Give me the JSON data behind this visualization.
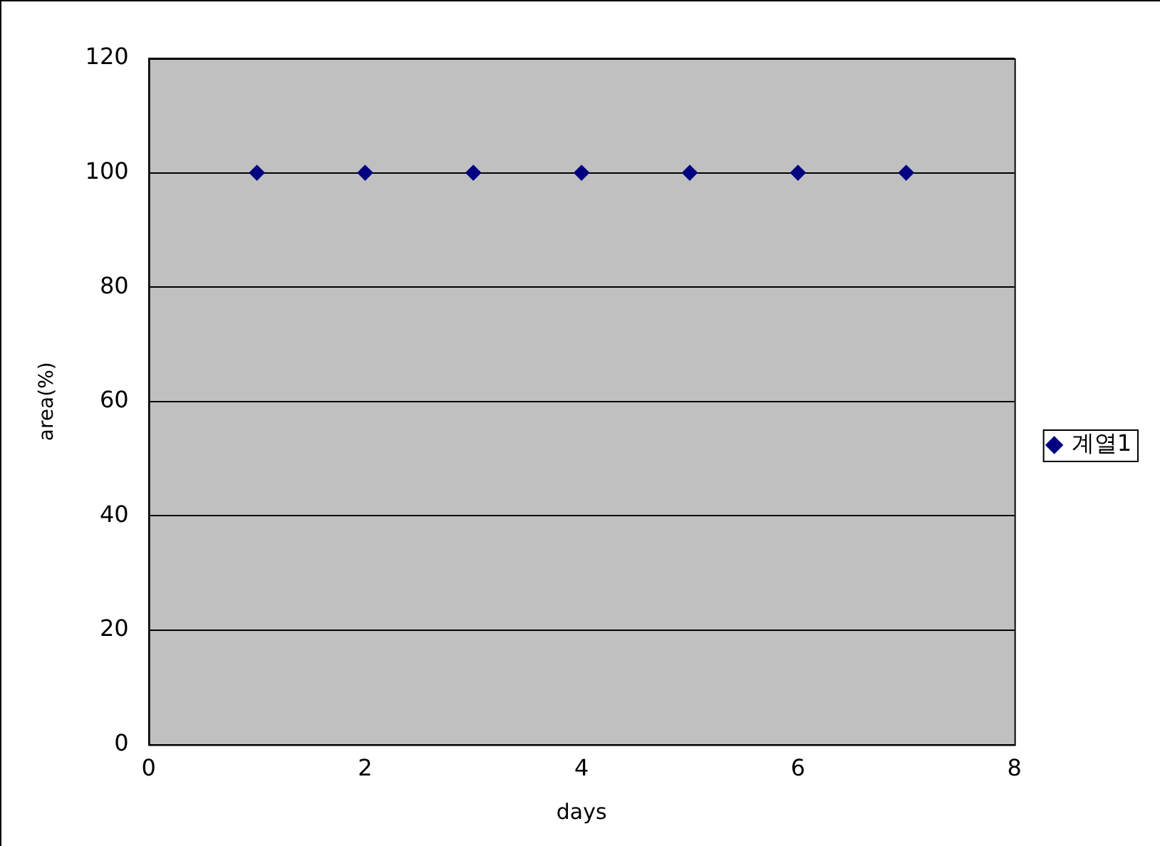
{
  "chart_data": {
    "type": "scatter",
    "xlabel": "days",
    "ylabel": "area(%)",
    "x": [
      1,
      2,
      3,
      4,
      5,
      6,
      7
    ],
    "series": [
      {
        "name": "계열1",
        "color": "#000080",
        "values": [
          100,
          100,
          100,
          100,
          100,
          100,
          100
        ]
      }
    ],
    "xlim": [
      0,
      8
    ],
    "xticks": [
      0,
      2,
      4,
      6,
      8
    ],
    "ylim": [
      0,
      120
    ],
    "yticks": [
      0,
      20,
      40,
      60,
      80,
      100,
      120
    ],
    "grid": "y",
    "legend": "right",
    "marker": "diamond"
  }
}
